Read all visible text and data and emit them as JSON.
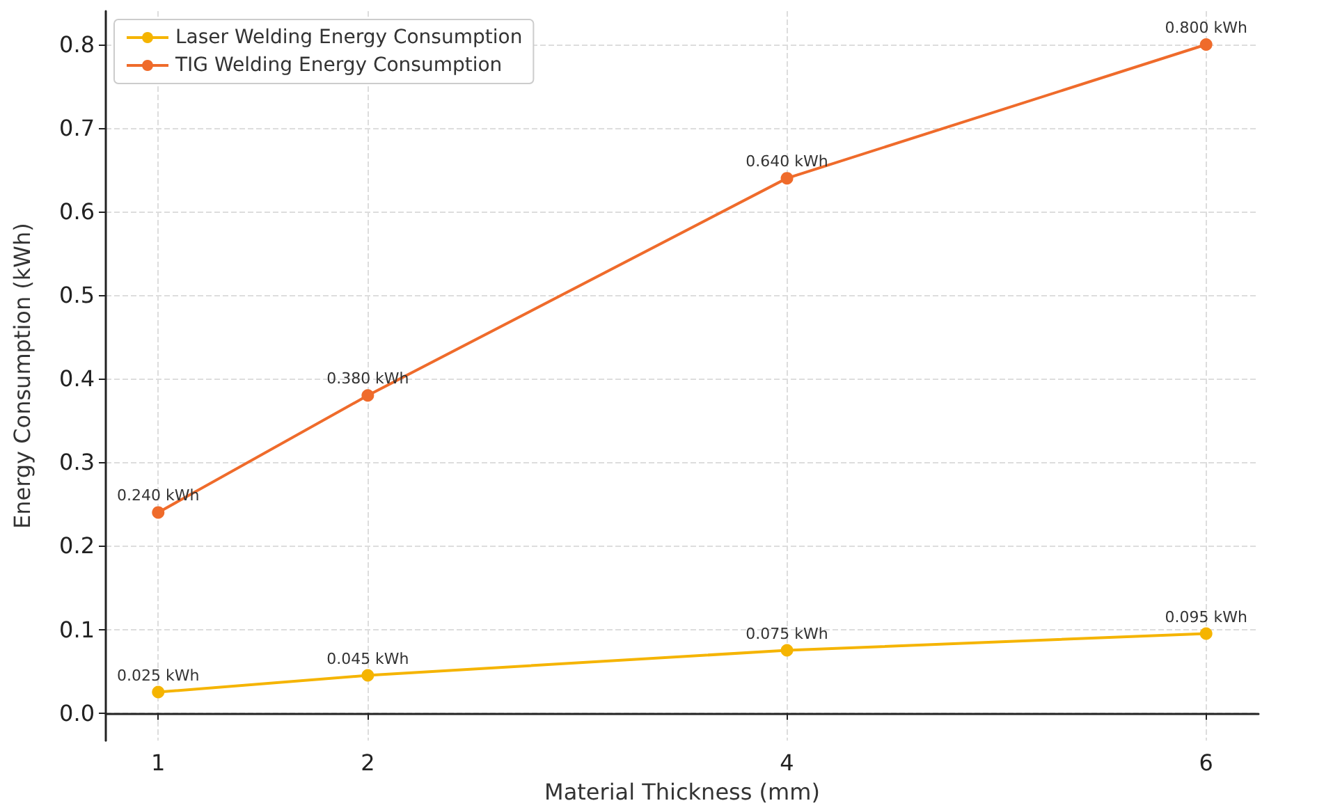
{
  "chart_data": {
    "type": "line",
    "xlabel": "Material Thickness (mm)",
    "ylabel": "Energy Consumption (kWh)",
    "x": [
      1,
      2,
      4,
      6
    ],
    "series": [
      {
        "name": "Laser Welding Energy Consumption",
        "color": "#f5b400",
        "values": [
          0.025,
          0.045,
          0.075,
          0.095
        ],
        "value_labels": [
          "0.025 kWh",
          "0.045 kWh",
          "0.075 kWh",
          "0.095 kWh"
        ]
      },
      {
        "name": "TIG Welding Energy Consumption",
        "color": "#ef6b2b",
        "values": [
          0.24,
          0.38,
          0.64,
          0.8
        ],
        "value_labels": [
          "0.240 kWh",
          "0.380 kWh",
          "0.640 kWh",
          "0.800 kWh"
        ]
      }
    ],
    "xlim": [
      0.75,
      6.25
    ],
    "xticks": [
      1,
      2,
      4,
      6
    ],
    "ylim": [
      -0.033,
      0.84
    ],
    "yticks": [
      {
        "value": 0,
        "label": "0.0"
      },
      0.1,
      0.2,
      0.3,
      0.4,
      0.5,
      0.6,
      0.7,
      0.8
    ],
    "grid": true,
    "legend": "top left",
    "marker": "circle",
    "line_style": "solid"
  }
}
